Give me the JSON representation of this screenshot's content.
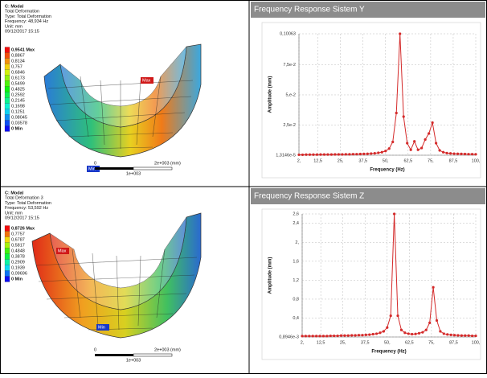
{
  "panels": [
    {
      "info": [
        "C: Modal",
        "Total Deformation",
        "Type: Total Deformation",
        "Frequency: 48,934 Hz",
        "Unit: mm",
        "09/12/2017 15:15"
      ],
      "legend": [
        "0,9541 Max",
        "0,8867",
        "0,8134",
        "0,757",
        "0,6846",
        "0,6173",
        "0,5499",
        "0,4825",
        "0,2592",
        "0,2145",
        "0,1698",
        "0,1251",
        "0,08045",
        "0,03578",
        "0 Min"
      ],
      "max_label": "Max",
      "min_label": "Min",
      "scale": {
        "start": "0",
        "end": "2e+003 (mm)",
        "mid": "1e+003"
      }
    },
    {
      "info": [
        "C: Modal",
        "Total Deformation 3",
        "Type: Total Deformation",
        "Frequency: 53,592 Hz",
        "Unit: mm",
        "09/12/2017 15:15"
      ],
      "legend": [
        "0,8726 Max",
        "0,7757",
        "0,6787",
        "0,5817",
        "0,4848",
        "0,3878",
        "0,2909",
        "0,1939",
        "0,09696",
        "0 Min"
      ],
      "max_label": "Max",
      "min_label": "Min",
      "scale": {
        "start": "0",
        "end": "2e+003 (mm)",
        "mid": "1e+003"
      }
    }
  ],
  "chart_data": [
    {
      "type": "line",
      "title": "Frequency Response Sistem Y",
      "x_label": "Frequency (Hz)",
      "y_label": "Amplitude (mm)",
      "x": [
        2,
        4,
        6,
        8,
        10,
        12,
        14,
        16,
        18,
        20,
        22,
        24,
        26,
        28,
        30,
        32,
        34,
        36,
        38,
        40,
        42,
        44,
        46,
        48,
        50,
        52,
        54,
        56,
        58,
        60,
        62,
        64,
        66,
        68,
        70,
        72,
        74,
        76,
        78,
        80,
        82,
        84,
        86,
        88,
        90,
        92,
        94,
        96,
        98,
        100
      ],
      "series": [
        {
          "color": "#d42a2a",
          "values": [
            0.0004,
            0.0004,
            0.0005,
            0.0005,
            0.0005,
            0.0005,
            0.0006,
            0.0006,
            0.0006,
            0.0006,
            0.0007,
            0.0007,
            0.0007,
            0.0008,
            0.0008,
            0.0009,
            0.0009,
            0.001,
            0.0011,
            0.0012,
            0.0014,
            0.0016,
            0.002,
            0.0025,
            0.0035,
            0.0055,
            0.011,
            0.035,
            0.10063,
            0.032,
            0.01,
            0.0045,
            0.0115,
            0.0045,
            0.006,
            0.013,
            0.018,
            0.027,
            0.01,
            0.004,
            0.0025,
            0.0018,
            0.0015,
            0.0013,
            0.0012,
            0.0011,
            0.001,
            0.0009,
            0.0009,
            0.0008
          ]
        }
      ],
      "xlim": [
        2,
        100
      ],
      "xticks": [
        {
          "value": 2,
          "label": "2,"
        },
        {
          "value": 12.5,
          "label": "12,5"
        },
        {
          "value": 25,
          "label": "25,"
        },
        {
          "value": 37.5,
          "label": "37,5"
        },
        {
          "value": 50,
          "label": "50,"
        },
        {
          "value": 62.5,
          "label": "62,5"
        },
        {
          "value": 75,
          "label": "75,"
        },
        {
          "value": 87.5,
          "label": "87,5"
        },
        {
          "value": 100,
          "label": "100,"
        }
      ],
      "ylim": [
        1.3146e-05,
        0.10063
      ],
      "yticks": [
        {
          "value": 1.3146e-05,
          "label": "1,3146e-5"
        },
        {
          "value": 0.025,
          "label": "2,5e-2"
        },
        {
          "value": 0.05,
          "label": "5,e-2"
        },
        {
          "value": 0.075,
          "label": "7,5e-2"
        },
        {
          "value": 0.10063,
          "label": "0,10063"
        }
      ],
      "grid": true
    },
    {
      "type": "line",
      "title": "Frequency Response Sistem Z",
      "x_label": "Frequency (Hz)",
      "y_label": "Amplitude (mm)",
      "x": [
        2,
        4,
        6,
        8,
        10,
        12,
        14,
        16,
        18,
        20,
        22,
        24,
        26,
        28,
        30,
        32,
        34,
        36,
        38,
        40,
        42,
        44,
        46,
        48,
        50,
        52,
        54,
        56,
        58,
        60,
        62,
        64,
        66,
        68,
        70,
        72,
        74,
        76,
        78,
        80,
        82,
        84,
        86,
        88,
        90,
        92,
        94,
        96,
        98,
        100
      ],
      "series": [
        {
          "color": "#d42a2a",
          "values": [
            0.02,
            0.02,
            0.02,
            0.02,
            0.02,
            0.02,
            0.02,
            0.02,
            0.025,
            0.025,
            0.025,
            0.03,
            0.03,
            0.03,
            0.035,
            0.035,
            0.04,
            0.04,
            0.045,
            0.05,
            0.06,
            0.07,
            0.09,
            0.12,
            0.2,
            0.45,
            2.6,
            0.45,
            0.15,
            0.09,
            0.07,
            0.06,
            0.065,
            0.08,
            0.1,
            0.15,
            0.3,
            1.05,
            0.35,
            0.12,
            0.07,
            0.055,
            0.045,
            0.04,
            0.035,
            0.03,
            0.03,
            0.03,
            0.025,
            0.025
          ]
        }
      ],
      "xlim": [
        2,
        100
      ],
      "xticks": [
        {
          "value": 2,
          "label": "2,"
        },
        {
          "value": 12.5,
          "label": "12,5"
        },
        {
          "value": 25,
          "label": "25,"
        },
        {
          "value": 37.5,
          "label": "37,5"
        },
        {
          "value": 50,
          "label": "50,"
        },
        {
          "value": 62.5,
          "label": "62,5"
        },
        {
          "value": 75,
          "label": "75,"
        },
        {
          "value": 87.5,
          "label": "87,5"
        },
        {
          "value": 100,
          "label": "100,"
        }
      ],
      "ylim": [
        0.0008946,
        2.6
      ],
      "yticks": [
        {
          "value": 0.0008946,
          "label": "0,8946e-3"
        },
        {
          "value": 0.4,
          "label": "0,4"
        },
        {
          "value": 0.8,
          "label": "0,8"
        },
        {
          "value": 1.2,
          "label": "1,2"
        },
        {
          "value": 1.6,
          "label": "1,6"
        },
        {
          "value": 2,
          "label": "2,"
        },
        {
          "value": 2.4,
          "label": "2,4"
        },
        {
          "value": 2.6,
          "label": "2,6"
        }
      ],
      "grid": true
    }
  ]
}
